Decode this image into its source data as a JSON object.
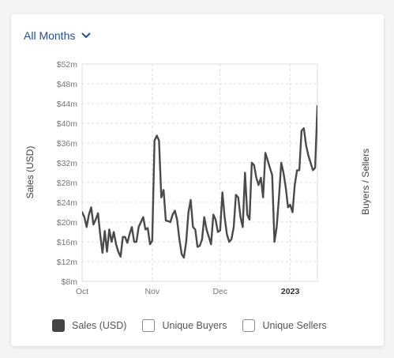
{
  "period_selector": {
    "label": "All Months"
  },
  "legend": [
    {
      "label": "Sales (USD)",
      "checked": true
    },
    {
      "label": "Unique Buyers",
      "checked": false
    },
    {
      "label": "Unique Sellers",
      "checked": false
    }
  ],
  "colors": {
    "line": "#4a4a4a",
    "accent": "#1f4f9a",
    "grid": "#dcdcdc",
    "text": "#777777"
  },
  "chart_data": {
    "type": "line",
    "ylabel": "Sales (USD)",
    "y2label": "Buyers / Sellers",
    "ylim": [
      8,
      52
    ],
    "yticks": [
      8,
      12,
      16,
      20,
      24,
      28,
      32,
      36,
      40,
      44,
      48,
      52
    ],
    "ytick_labels": [
      "$8m",
      "$12m",
      "$16m",
      "$20m",
      "$24m",
      "$28m",
      "$32m",
      "$36m",
      "$40m",
      "$44m",
      "$48m",
      "$52m"
    ],
    "xlim": [
      "2022-10-01",
      "2023-01-13"
    ],
    "xticks": [
      "2022-10-01",
      "2022-11-01",
      "2022-12-01",
      "2023-01-01"
    ],
    "xtick_labels": [
      "Oct",
      "Nov",
      "Dec",
      "2023"
    ],
    "grid": true,
    "legend_position": "bottom",
    "series": [
      {
        "name": "Sales (USD)",
        "x": [
          "2022-10-01",
          "2022-10-02",
          "2022-10-03",
          "2022-10-04",
          "2022-10-05",
          "2022-10-06",
          "2022-10-07",
          "2022-10-08",
          "2022-10-09",
          "2022-10-10",
          "2022-10-11",
          "2022-10-12",
          "2022-10-13",
          "2022-10-14",
          "2022-10-15",
          "2022-10-16",
          "2022-10-17",
          "2022-10-18",
          "2022-10-19",
          "2022-10-20",
          "2022-10-21",
          "2022-10-22",
          "2022-10-23",
          "2022-10-24",
          "2022-10-25",
          "2022-10-26",
          "2022-10-27",
          "2022-10-28",
          "2022-10-29",
          "2022-10-30",
          "2022-10-31",
          "2022-11-01",
          "2022-11-02",
          "2022-11-03",
          "2022-11-04",
          "2022-11-05",
          "2022-11-06",
          "2022-11-07",
          "2022-11-08",
          "2022-11-09",
          "2022-11-10",
          "2022-11-11",
          "2022-11-12",
          "2022-11-13",
          "2022-11-14",
          "2022-11-15",
          "2022-11-16",
          "2022-11-17",
          "2022-11-18",
          "2022-11-19",
          "2022-11-20",
          "2022-11-21",
          "2022-11-22",
          "2022-11-23",
          "2022-11-24",
          "2022-11-25",
          "2022-11-26",
          "2022-11-27",
          "2022-11-28",
          "2022-11-29",
          "2022-11-30",
          "2022-12-01",
          "2022-12-02",
          "2022-12-03",
          "2022-12-04",
          "2022-12-05",
          "2022-12-06",
          "2022-12-07",
          "2022-12-08",
          "2022-12-09",
          "2022-12-10",
          "2022-12-11",
          "2022-12-12",
          "2022-12-13",
          "2022-12-14",
          "2022-12-15",
          "2022-12-16",
          "2022-12-17",
          "2022-12-18",
          "2022-12-19",
          "2022-12-20",
          "2022-12-21",
          "2022-12-22",
          "2022-12-23",
          "2022-12-24",
          "2022-12-25",
          "2022-12-26",
          "2022-12-27",
          "2022-12-28",
          "2022-12-29",
          "2022-12-30",
          "2022-12-31",
          "2023-01-01",
          "2023-01-02",
          "2023-01-03",
          "2023-01-04",
          "2023-01-05",
          "2023-01-06",
          "2023-01-07",
          "2023-01-08",
          "2023-01-09",
          "2023-01-10",
          "2023-01-11",
          "2023-01-12",
          "2023-01-13"
        ],
        "values": [
          22.0,
          21.0,
          19.0,
          21.5,
          23.0,
          19.5,
          20.5,
          21.8,
          17.5,
          13.8,
          18.2,
          14.0,
          18.5,
          16.0,
          18.0,
          15.5,
          14.0,
          13.0,
          17.0,
          17.0,
          15.8,
          17.6,
          19.0,
          16.0,
          16.0,
          19.0,
          20.0,
          21.0,
          18.5,
          18.8,
          15.5,
          16.2,
          36.5,
          37.5,
          36.5,
          25.0,
          26.5,
          20.3,
          20.2,
          20.0,
          21.5,
          22.3,
          20.5,
          16.5,
          13.5,
          12.8,
          16.0,
          22.0,
          24.5,
          19.0,
          18.5,
          15.0,
          15.2,
          16.5,
          21.0,
          18.5,
          17.0,
          15.5,
          21.5,
          20.5,
          18.0,
          18.3,
          26.0,
          21.0,
          17.5,
          16.0,
          16.5,
          19.0,
          25.5,
          25.0,
          21.0,
          19.0,
          30.0,
          21.5,
          20.5,
          32.0,
          31.5,
          29.0,
          27.5,
          29.0,
          25.0,
          34.0,
          32.5,
          31.0,
          29.5,
          16.0,
          19.0,
          25.0,
          32.0,
          30.0,
          27.0,
          23.0,
          23.5,
          22.0,
          27.5,
          30.5,
          30.5,
          38.5,
          39.0,
          35.5,
          33.5,
          32.0,
          30.5,
          31.0,
          43.5
        ]
      }
    ]
  }
}
